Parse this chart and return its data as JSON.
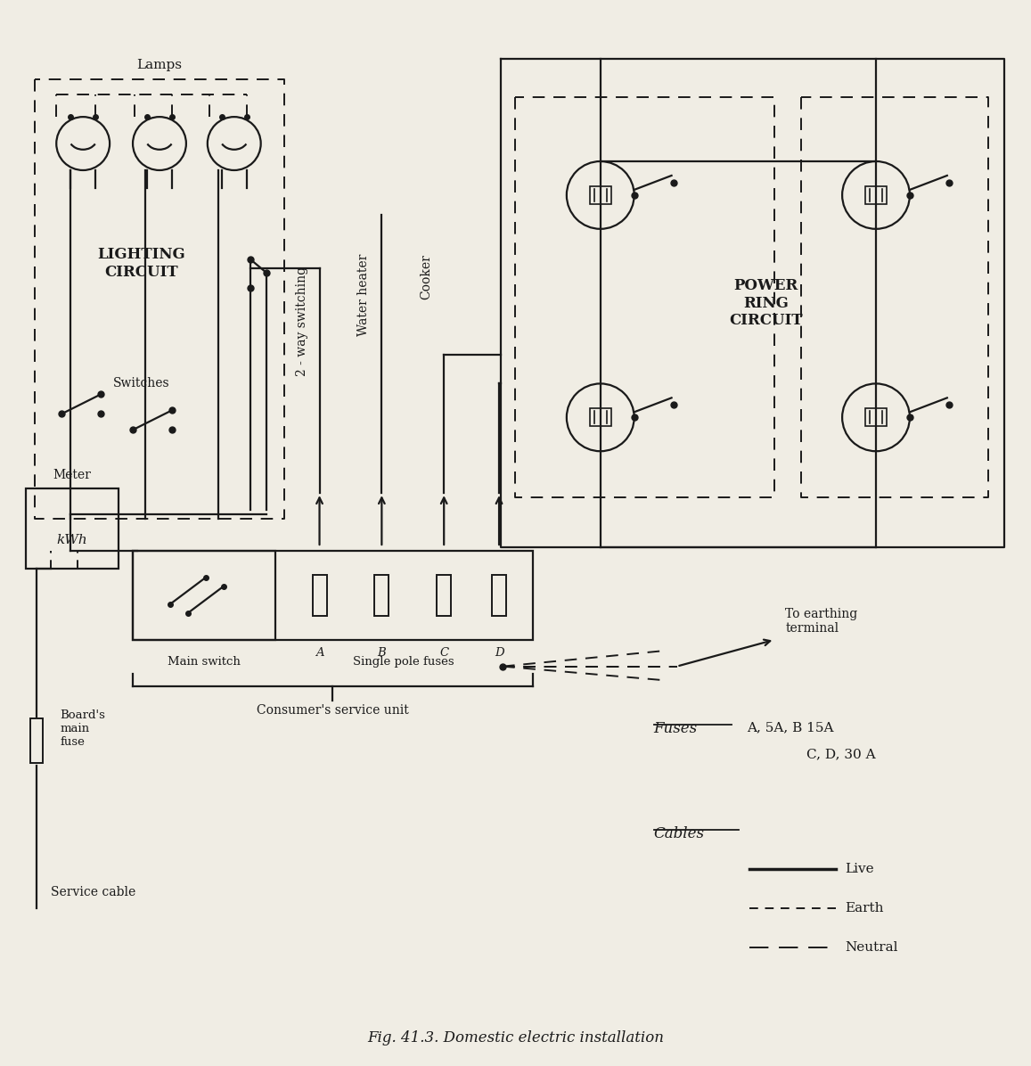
{
  "title": "Fig. 41.3. Domestic electric installation",
  "bg_color": "#f0ede4",
  "line_color": "#1a1a1a",
  "labels": {
    "lamps": "Lamps",
    "lighting_circuit": "LIGHTING\nCIRCUIT",
    "switches": "Switches",
    "two_way": "2 - way switching",
    "water_heater": "Water heater",
    "cooker": "Cooker",
    "power_ring": "POWER\nRING\nCIRCUIT",
    "meter": "Meter",
    "kwh": "kWh",
    "boards_main_fuse": "Board's\nmain\nfuse",
    "service_cable": "Service cable",
    "single_pole_fuses": "Single pole fuses",
    "main_switch": "Main switch",
    "consumers_service": "Consumer's service unit",
    "to_earthing": "To earthing\nterminal",
    "fuses_label": "Fuses",
    "fuses_values1": "A, 5A, B 15A",
    "fuses_values2": "C, D, 30 A",
    "cables_label": "Cables",
    "live_label": "Live",
    "earth_label": "Earth",
    "neutral_label": "Neutral",
    "fuse_letters": [
      "A",
      "B",
      "C",
      "D"
    ]
  }
}
